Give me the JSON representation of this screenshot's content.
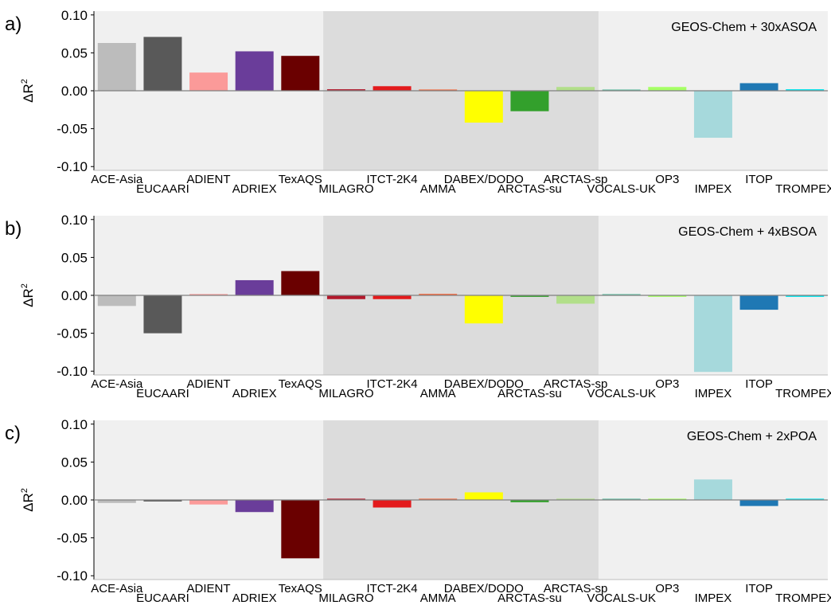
{
  "chart_data": [
    {
      "type": "bar",
      "panel_label": "a)",
      "title": "GEOS-Chem + 30xASOA",
      "ylabel": "ΔR",
      "ylabel_sup": "2",
      "ylim": [
        -0.105,
        0.105
      ],
      "yticks": [
        0.1,
        0.05,
        0.0,
        -0.05,
        -0.1
      ],
      "ytick_labels": [
        "0.10",
        "0.05",
        "0.00",
        "-0.05",
        "-0.10"
      ],
      "shaded_categories": [
        "MILAGRO",
        "ITCT-2K4",
        "AMMA",
        "DABEX/DODO",
        "ARCTAS-su",
        "ARCTAS-sp"
      ],
      "categories": [
        "ACE-Asia",
        "EUCAARI",
        "ADIENT",
        "ADRIEX",
        "TexAQS",
        "MILAGRO",
        "ITCT-2K4",
        "AMMA",
        "DABEX/DODO",
        "ARCTAS-su",
        "ARCTAS-sp",
        "VOCALS-UK",
        "OP3",
        "IMPEX",
        "ITOP",
        "TROMPEX"
      ],
      "values": [
        0.063,
        0.071,
        0.024,
        0.052,
        0.046,
        0.002,
        0.006,
        0.001,
        -0.042,
        -0.027,
        0.005,
        0.001,
        0.005,
        -0.062,
        0.01,
        0.002
      ]
    },
    {
      "type": "bar",
      "panel_label": "b)",
      "title": "GEOS-Chem + 4xBSOA",
      "ylabel": "ΔR",
      "ylabel_sup": "2",
      "ylim": [
        -0.105,
        0.105
      ],
      "yticks": [
        0.1,
        0.05,
        0.0,
        -0.05,
        -0.1
      ],
      "ytick_labels": [
        "0.10",
        "0.05",
        "0.00",
        "-0.05",
        "-0.10"
      ],
      "shaded_categories": [
        "MILAGRO",
        "ITCT-2K4",
        "AMMA",
        "DABEX/DODO",
        "ARCTAS-su",
        "ARCTAS-sp"
      ],
      "categories": [
        "ACE-Asia",
        "EUCAARI",
        "ADIENT",
        "ADRIEX",
        "TexAQS",
        "MILAGRO",
        "ITCT-2K4",
        "AMMA",
        "DABEX/DODO",
        "ARCTAS-su",
        "ARCTAS-sp",
        "VOCALS-UK",
        "OP3",
        "IMPEX",
        "ITOP",
        "TROMPEX"
      ],
      "values": [
        -0.014,
        -0.05,
        0.001,
        0.02,
        0.032,
        -0.005,
        -0.005,
        0.002,
        -0.037,
        -0.002,
        -0.011,
        0.001,
        -0.002,
        -0.101,
        -0.019,
        -0.002
      ]
    },
    {
      "type": "bar",
      "panel_label": "c)",
      "title": "GEOS-Chem + 2xPOA",
      "ylabel": "ΔR",
      "ylabel_sup": "2",
      "ylim": [
        -0.105,
        0.105
      ],
      "yticks": [
        0.1,
        0.05,
        0.0,
        -0.05,
        -0.1
      ],
      "ytick_labels": [
        "0.10",
        "0.05",
        "0.00",
        "-0.05",
        "-0.10"
      ],
      "shaded_categories": [
        "MILAGRO",
        "ITCT-2K4",
        "AMMA",
        "DABEX/DODO",
        "ARCTAS-su",
        "ARCTAS-sp"
      ],
      "categories": [
        "ACE-Asia",
        "EUCAARI",
        "ADIENT",
        "ADRIEX",
        "TexAQS",
        "MILAGRO",
        "ITCT-2K4",
        "AMMA",
        "DABEX/DODO",
        "ARCTAS-su",
        "ARCTAS-sp",
        "VOCALS-UK",
        "OP3",
        "IMPEX",
        "ITOP",
        "TROMPEX"
      ],
      "values": [
        -0.004,
        -0.002,
        -0.006,
        -0.016,
        -0.077,
        0.001,
        -0.01,
        0.0,
        0.01,
        -0.003,
        0.0,
        0.001,
        0.0,
        0.027,
        -0.008,
        0.0
      ]
    }
  ],
  "bar_colors": [
    "#bcbcbc",
    "#595959",
    "#fb9a99",
    "#6a3d9a",
    "#6a0000",
    "#b2182b",
    "#e31a1c",
    "#f46d43",
    "#ffff00",
    "#33a02c",
    "#b2df8a",
    "#66c2a5",
    "#a6ff66",
    "#a6d9dc",
    "#1f78b4",
    "#00e5ee"
  ],
  "colors": {
    "panel_bg": "#f0f0f0",
    "shaded_bg": "#dcdcdc",
    "zero_line": "#808080",
    "axis": "#000000",
    "text": "#000000"
  }
}
